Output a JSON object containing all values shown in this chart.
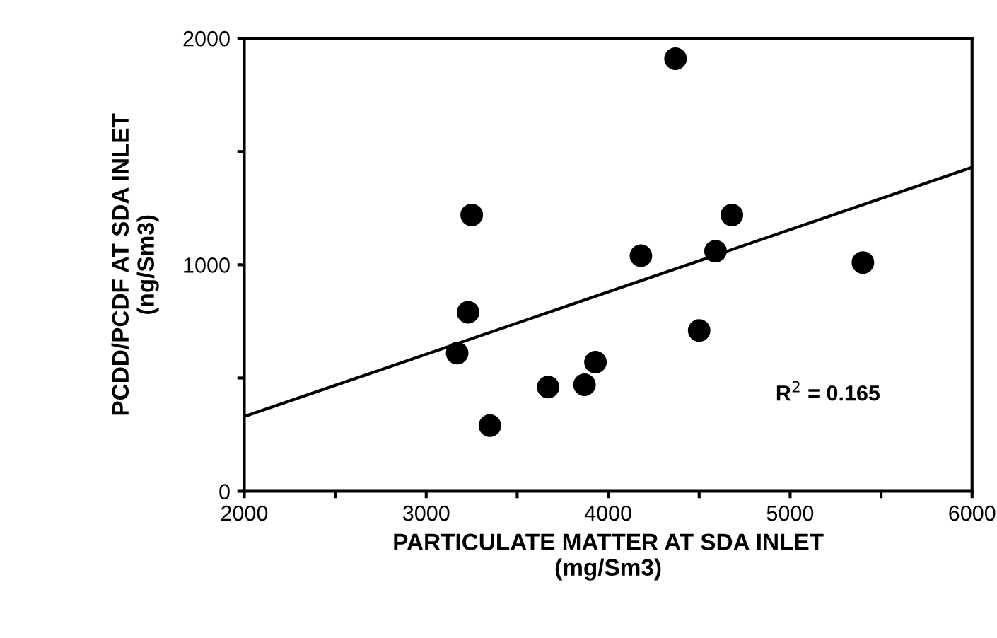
{
  "chart_data": {
    "type": "scatter",
    "xlabel": "PARTICULATE MATTER AT SDA INLET\n(mg/Sm3)",
    "ylabel": "PCDD/PCDF AT SDA INLET\n(ng/Sm3)",
    "x": [
      4370,
      3250,
      4680,
      4180,
      4590,
      5400,
      3230,
      3170,
      4500,
      3930,
      3870,
      3670,
      3350
    ],
    "series": [
      {
        "color": "#000000",
        "marker": "circle",
        "values": [
          1910,
          1220,
          1220,
          1040,
          1060,
          1010,
          790,
          610,
          710,
          570,
          470,
          460,
          290
        ]
      },
      {
        "type": "line",
        "color": "#000000",
        "x": [
          2000,
          6000
        ],
        "values": [
          330,
          1430
        ],
        "marker": "none"
      }
    ],
    "xlim": [
      2000,
      6000
    ],
    "ylim": [
      0,
      2000
    ],
    "xticks": [
      2000,
      {
        "value": 2500,
        "label": null
      },
      3000,
      {
        "value": 3500,
        "label": null
      },
      4000,
      {
        "value": 4500,
        "label": null
      },
      5000,
      {
        "value": 5500,
        "label": null
      },
      6000
    ],
    "yticks": [
      0,
      {
        "value": 500,
        "label": null
      },
      1000,
      {
        "value": 1500,
        "label": null
      },
      2000
    ],
    "annotations": [
      "R$^{2}$ = 0.165"
    ],
    "grid": false,
    "legend": false
  }
}
